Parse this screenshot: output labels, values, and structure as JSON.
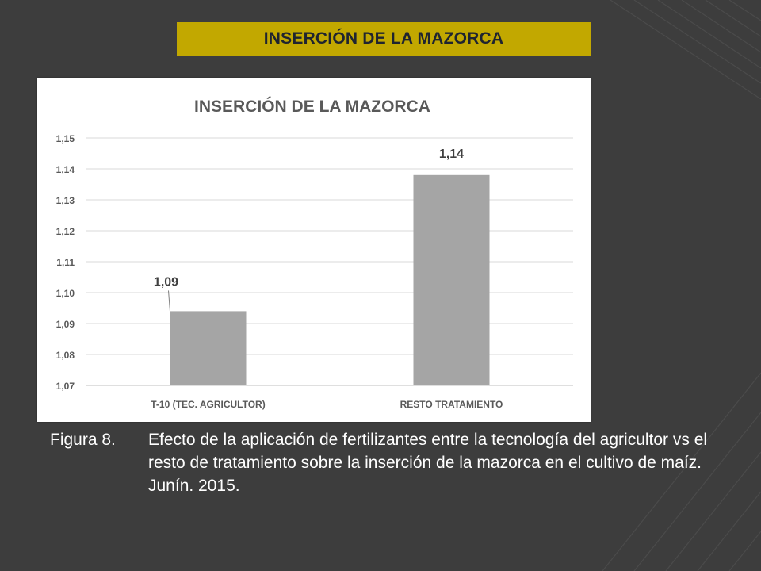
{
  "slide": {
    "title": "INSERCIÓN DE LA MAZORCA",
    "caption_label": "Figura 8.",
    "caption_text": "Efecto de la aplicación de fertilizantes entre la tecnología del agricultor vs el resto de tratamiento sobre la inserción de la mazorca en el cultivo de maíz. Junín. 2015."
  },
  "colors": {
    "background": "#3d3d3d",
    "banner": "#c2a800",
    "bar": "#a5a5a5"
  },
  "chart_data": {
    "type": "bar",
    "title": "INSERCIÓN DE LA MAZORCA",
    "categories": [
      "T-10 (TEC. AGRICULTOR)",
      "RESTO TRATAMIENTO"
    ],
    "values": [
      1.094,
      1.138
    ],
    "data_labels": [
      "1,09",
      "1,14"
    ],
    "ylim": [
      1.07,
      1.15
    ],
    "yticks": [
      "1,07",
      "1,08",
      "1,09",
      "1,10",
      "1,11",
      "1,12",
      "1,13",
      "1,14",
      "1,15"
    ],
    "grid": true,
    "legend": "none"
  }
}
